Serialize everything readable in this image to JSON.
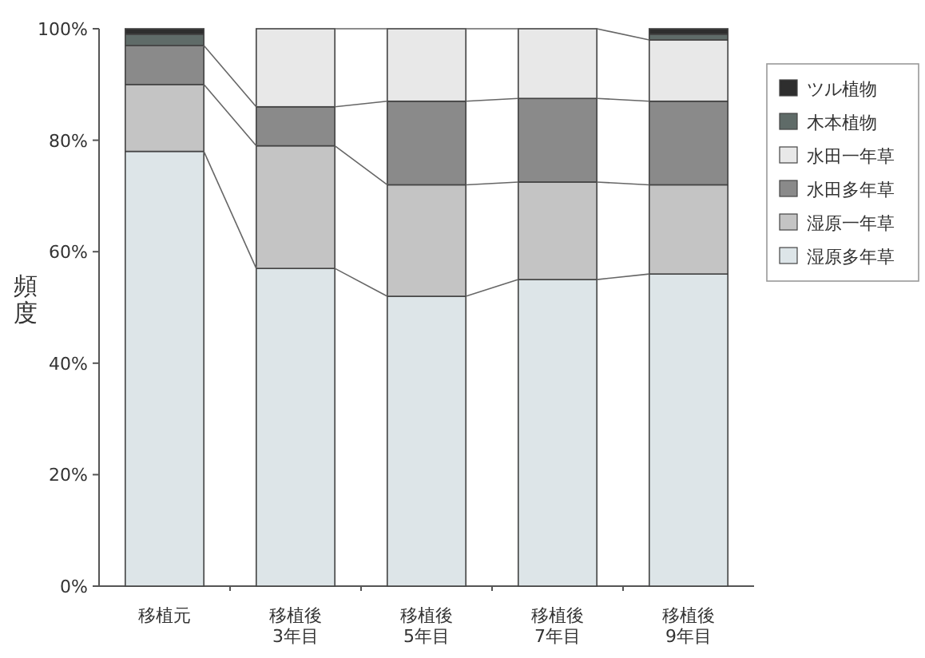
{
  "chart_data": {
    "type": "bar",
    "stacked": true,
    "ylabel": "頻度",
    "categories": [
      "移植元",
      "移植後 3年目",
      "移植後 5年目",
      "移植後 7年目",
      "移植後 9年目"
    ],
    "series": [
      {
        "name": "湿原多年草",
        "color": "#dde5e8",
        "values": [
          78,
          57,
          52,
          55,
          56
        ]
      },
      {
        "name": "湿原一年草",
        "color": "#c4c4c4",
        "values": [
          12,
          22,
          20,
          17.5,
          16
        ]
      },
      {
        "name": "水田多年草",
        "color": "#8a8a8a",
        "values": [
          7,
          7,
          15,
          15,
          15
        ]
      },
      {
        "name": "水田一年草",
        "color": "#e8e8e8",
        "values": [
          0,
          14,
          13,
          12.5,
          11
        ]
      },
      {
        "name": "木本植物",
        "color": "#5f6b68",
        "values": [
          2,
          0,
          0,
          0,
          1
        ]
      },
      {
        "name": "ツル植物",
        "color": "#2e2e2e",
        "values": [
          1,
          0,
          0,
          0,
          1
        ]
      }
    ],
    "ylim": [
      0,
      100
    ],
    "yticks": [
      {
        "value": 0,
        "label": "0%"
      },
      {
        "value": 20,
        "label": "20%"
      },
      {
        "value": 40,
        "label": "40%"
      },
      {
        "value": 60,
        "label": "60%"
      },
      {
        "value": 80,
        "label": "80%"
      },
      {
        "value": 100,
        "label": "100%"
      }
    ],
    "legend": "right"
  }
}
